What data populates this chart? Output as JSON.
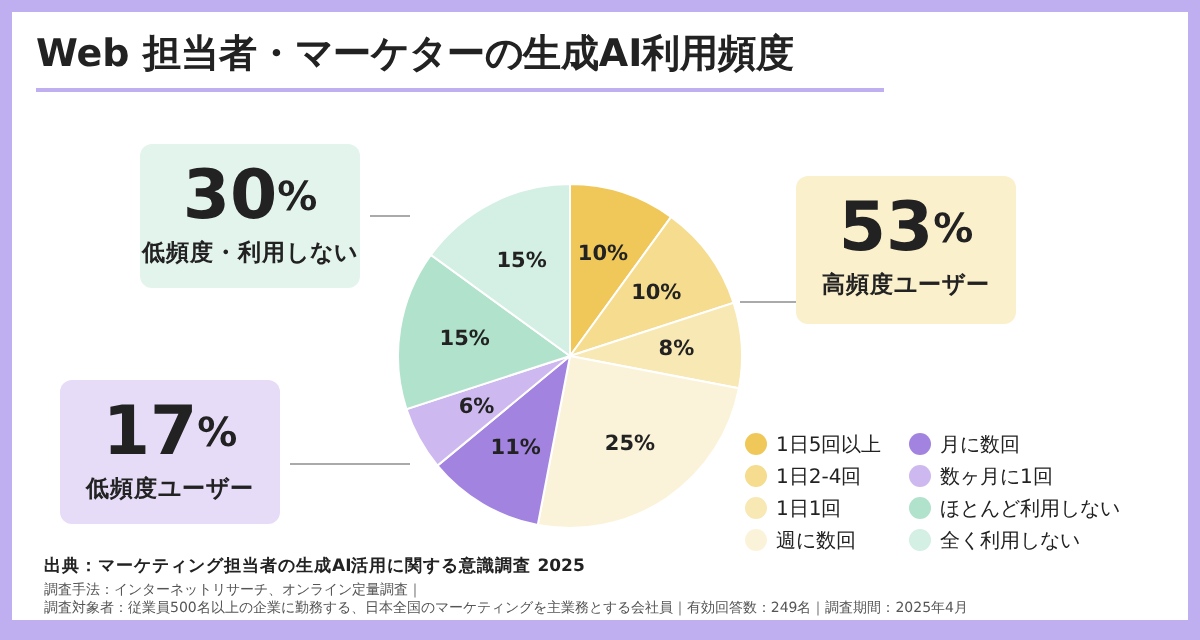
{
  "chart_data": {
    "type": "pie",
    "title": "Web 担当者・マーケターの生成AI利用頻度",
    "categories": [
      "1日5回以上",
      "1日2-4回",
      "1日1回",
      "週に数回",
      "月に数回",
      "数ヶ月に1回",
      "ほとんど利用しない",
      "全く利用しない"
    ],
    "values": [
      10,
      10,
      8,
      25,
      11,
      6,
      15,
      15
    ],
    "value_labels": [
      "10%",
      "10%",
      "8%",
      "25%",
      "11%",
      "6%",
      "15%",
      "15%"
    ],
    "colors": [
      "#f0c85a",
      "#f5dc8f",
      "#f8e8b3",
      "#fbf3d9",
      "#a283e0",
      "#cdb9ef",
      "#b1e2cc",
      "#d4efe4"
    ],
    "legend": "bottom right",
    "annotations": [
      "53%",
      "高頻度ユーザー",
      "30%",
      "低頻度・利用しない",
      "17%",
      "低頻度ユーザー",
      "出典：マーケティング担当者の生成AI活用に関する意識調査 2025",
      "調査手法：インターネットリサーチ、オンライン定量調査｜",
      "調査対象者：従業員500名以上の企業に勤務する、日本全国のマーケティングを主業務とする会社員｜有効回答数：249名｜調査期間：2025年4月"
    ]
  }
}
